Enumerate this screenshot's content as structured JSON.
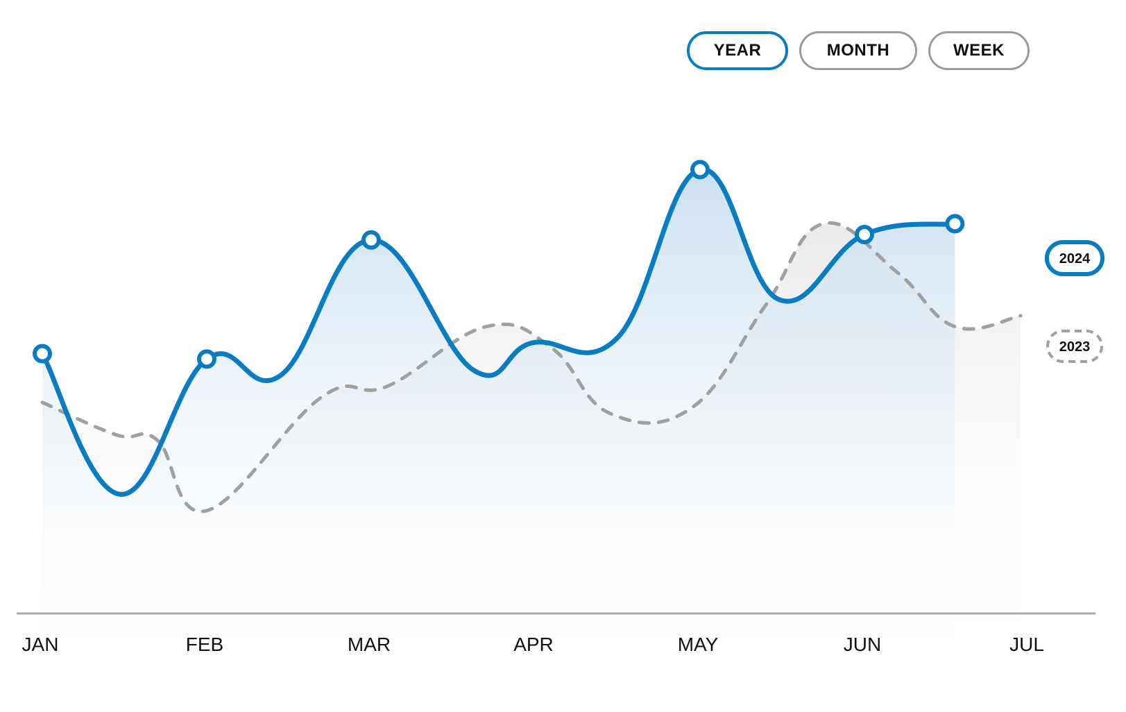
{
  "filters": {
    "year": "YEAR",
    "month": "MONTH",
    "week": "WEEK",
    "active": "year"
  },
  "colors": {
    "series_2024": "#0a7dc2",
    "series_2023": "#a0a0a0",
    "axis": "#a8a8a8"
  },
  "chart_data": {
    "type": "line",
    "title": "",
    "xlabel": "",
    "ylabel": "",
    "grid": false,
    "legend_position": "right",
    "ylim": [
      0,
      100
    ],
    "categories": [
      "JAN",
      "FEB",
      "MAR",
      "APR",
      "MAY",
      "JUN",
      "JUL"
    ],
    "series": [
      {
        "name": "2024",
        "style": "solid",
        "color": "#0a7dc2",
        "markers": true,
        "x": [
          0,
          0.48,
          1.0,
          1.45,
          2.0,
          2.62,
          2.98,
          3.5,
          4.0,
          4.48,
          5.0,
          5.55
        ],
        "y": [
          48,
          22,
          47,
          44,
          69,
          45,
          50,
          51,
          82,
          58,
          70,
          72
        ]
      },
      {
        "name": "2023",
        "style": "dashed",
        "color": "#a0a0a0",
        "markers": false,
        "x": [
          0,
          0.45,
          0.7,
          1.0,
          1.7,
          2.1,
          2.7,
          3.1,
          3.45,
          3.95,
          4.4,
          4.75,
          5.2,
          5.55,
          5.95
        ],
        "y": [
          39,
          33,
          32,
          19,
          40,
          42,
          53,
          49,
          37,
          38,
          57,
          72,
          63,
          53,
          55
        ]
      }
    ]
  }
}
